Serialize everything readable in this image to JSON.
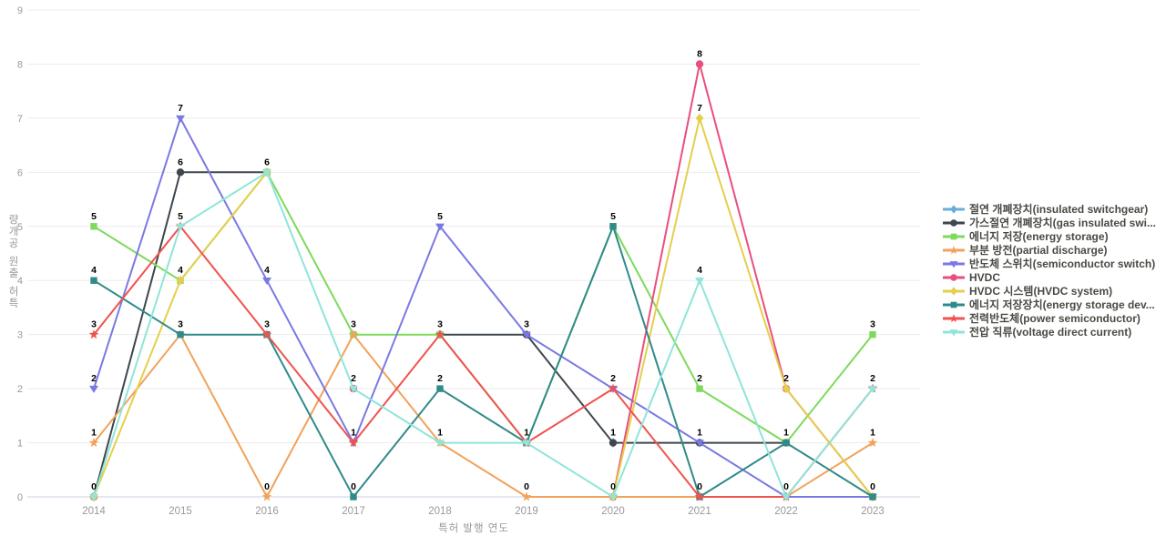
{
  "chart_data": {
    "type": "line",
    "title": "",
    "xlabel": "특허 발행 연도",
    "ylabel": "특허 출원 공개량",
    "ylim": [
      0,
      9
    ],
    "y_ticks": [
      0,
      1,
      2,
      3,
      4,
      5,
      6,
      7,
      8,
      9
    ],
    "grid": true,
    "legend_position": "right",
    "categories": [
      "2014",
      "2015",
      "2016",
      "2017",
      "2018",
      "2019",
      "2020",
      "2021",
      "2022",
      "2023"
    ],
    "series": [
      {
        "name": "절연 개폐장치(insulated switchgear)",
        "color": "#69ACDA",
        "symbol": "diamond",
        "values": [
          0,
          null,
          null,
          null,
          null,
          null,
          1,
          null,
          null,
          null
        ]
      },
      {
        "name": "가스절연 개폐장치(gas insulated swi...",
        "color": "#3E464E",
        "symbol": "circle",
        "values": [
          0,
          6,
          6,
          null,
          3,
          3,
          1,
          1,
          1,
          null
        ]
      },
      {
        "name": "에너지 저장(energy storage)",
        "color": "#7DDA5B",
        "symbol": "square",
        "values": [
          5,
          4,
          6,
          3,
          3,
          1,
          5,
          2,
          1,
          3
        ]
      },
      {
        "name": "부분 방전(partial discharge)",
        "color": "#F2A25A",
        "symbol": "star",
        "values": [
          1,
          3,
          0,
          3,
          1,
          0,
          0,
          0,
          0,
          1
        ]
      },
      {
        "name": "반도체 스위치(semiconductor switch)",
        "color": "#7A79E3",
        "symbol": "triangle-down",
        "values": [
          2,
          7,
          4,
          1,
          5,
          3,
          2,
          1,
          0,
          0
        ]
      },
      {
        "name": "HVDC",
        "color": "#E94F7D",
        "symbol": "circle",
        "values": [
          0,
          null,
          null,
          2,
          null,
          null,
          0,
          8,
          2,
          0
        ]
      },
      {
        "name": "HVDC 시스템(HVDC system)",
        "color": "#E4CF4D",
        "symbol": "diamond",
        "values": [
          0,
          4,
          6,
          null,
          null,
          null,
          0,
          7,
          2,
          0
        ]
      },
      {
        "name": "에너지 저장장치(energy storage dev...",
        "color": "#2F8B89",
        "symbol": "square",
        "values": [
          4,
          3,
          3,
          0,
          2,
          1,
          5,
          0,
          1,
          0
        ]
      },
      {
        "name": "전력반도체(power semiconductor)",
        "color": "#EF5350",
        "symbol": "star",
        "values": [
          3,
          5,
          3,
          1,
          3,
          1,
          2,
          0,
          0,
          2
        ]
      },
      {
        "name": "전압 직류(voltage direct current)",
        "color": "#8FE5D9",
        "symbol": "triangle-down",
        "values": [
          0,
          5,
          6,
          2,
          1,
          1,
          0,
          4,
          0,
          2
        ]
      }
    ]
  },
  "colors": {
    "grid_line": "#ebebeb",
    "axis_line": "#c8d1e0",
    "tick_text": "#999999",
    "axis_title_text": "#999999",
    "legend_text": "#4a4a44",
    "data_label": "#000000"
  }
}
